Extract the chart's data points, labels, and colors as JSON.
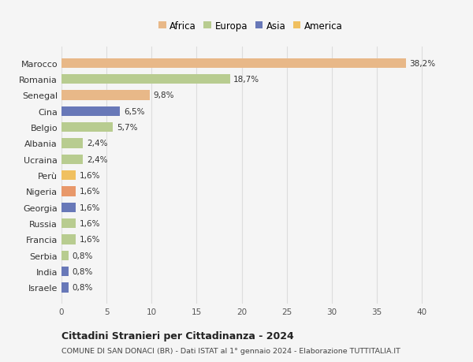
{
  "categories": [
    "Israele",
    "India",
    "Serbia",
    "Francia",
    "Russia",
    "Georgia",
    "Nigeria",
    "Perù",
    "Ucraina",
    "Albania",
    "Belgio",
    "Cina",
    "Senegal",
    "Romania",
    "Marocco"
  ],
  "values": [
    0.8,
    0.8,
    0.8,
    1.6,
    1.6,
    1.6,
    1.6,
    1.6,
    2.4,
    2.4,
    5.7,
    6.5,
    9.8,
    18.7,
    38.2
  ],
  "labels": [
    "0,8%",
    "0,8%",
    "0,8%",
    "1,6%",
    "1,6%",
    "1,6%",
    "1,6%",
    "1,6%",
    "2,4%",
    "2,4%",
    "5,7%",
    "6,5%",
    "9,8%",
    "18,7%",
    "38,2%"
  ],
  "colors": [
    "#6878b8",
    "#6878b8",
    "#b8cc90",
    "#b8cc90",
    "#b8cc90",
    "#6878b8",
    "#e8986a",
    "#f0c060",
    "#b8cc90",
    "#b8cc90",
    "#b8cc90",
    "#6878b8",
    "#e8b888",
    "#b8cc90",
    "#e8b888"
  ],
  "legend_labels": [
    "Africa",
    "Europa",
    "Asia",
    "America"
  ],
  "legend_colors": [
    "#e8b888",
    "#b8cc90",
    "#6878b8",
    "#f0c060"
  ],
  "title": "Cittadini Stranieri per Cittadinanza - 2024",
  "subtitle": "COMUNE DI SAN DONACI (BR) - Dati ISTAT al 1° gennaio 2024 - Elaborazione TUTTITALIA.IT",
  "xlim": [
    0,
    42
  ],
  "xticks": [
    0,
    5,
    10,
    15,
    20,
    25,
    30,
    35,
    40
  ],
  "background_color": "#f5f5f5",
  "grid_color": "#dddddd",
  "bar_height": 0.6
}
